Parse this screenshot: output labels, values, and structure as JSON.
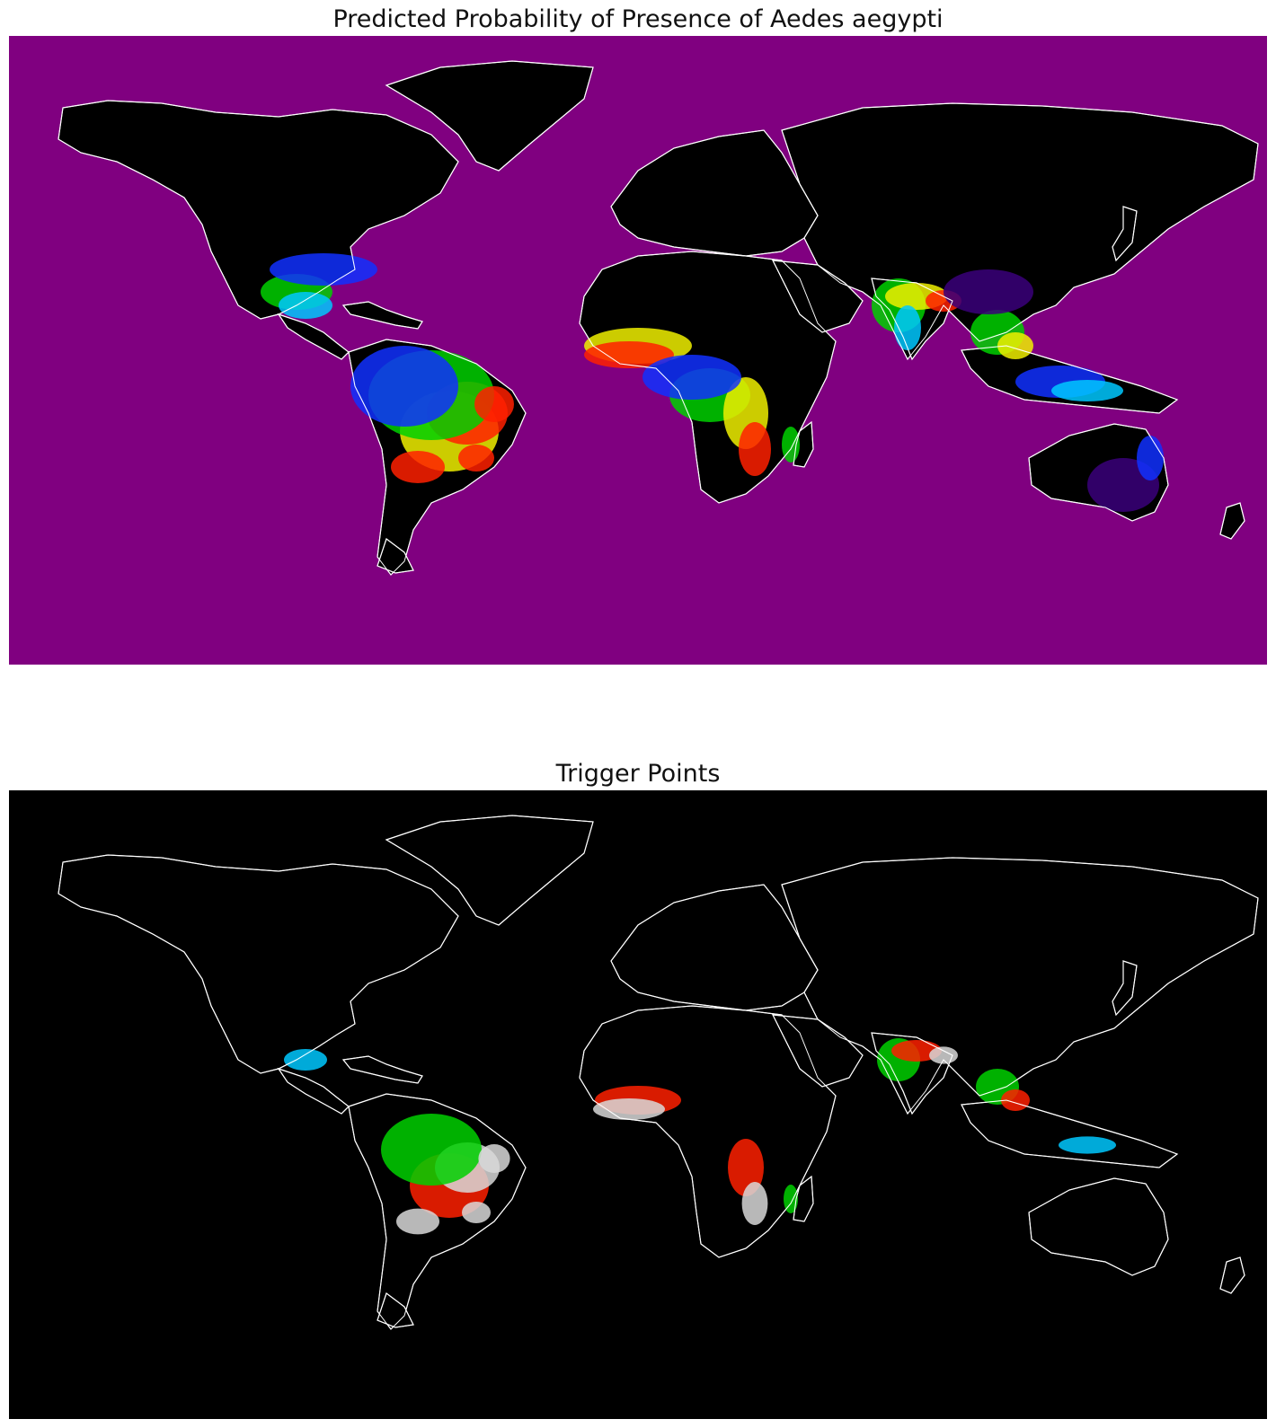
{
  "maps": [
    {
      "title": "Predicted Probability of Presence of Aedes aegypti",
      "ocean_color": "#800080",
      "land_color": "#000000",
      "border_color": "#ffffff"
    },
    {
      "title": "Trigger Points",
      "ocean_color": "#000000",
      "land_color": "#000000",
      "border_color": "#ffffff"
    }
  ],
  "palette": {
    "low": "#3a007a",
    "blue": "#1030ff",
    "cyan": "#00c8ff",
    "green": "#00d000",
    "yellow": "#f0f000",
    "red": "#ff2000",
    "high": "#d8d8d8"
  }
}
